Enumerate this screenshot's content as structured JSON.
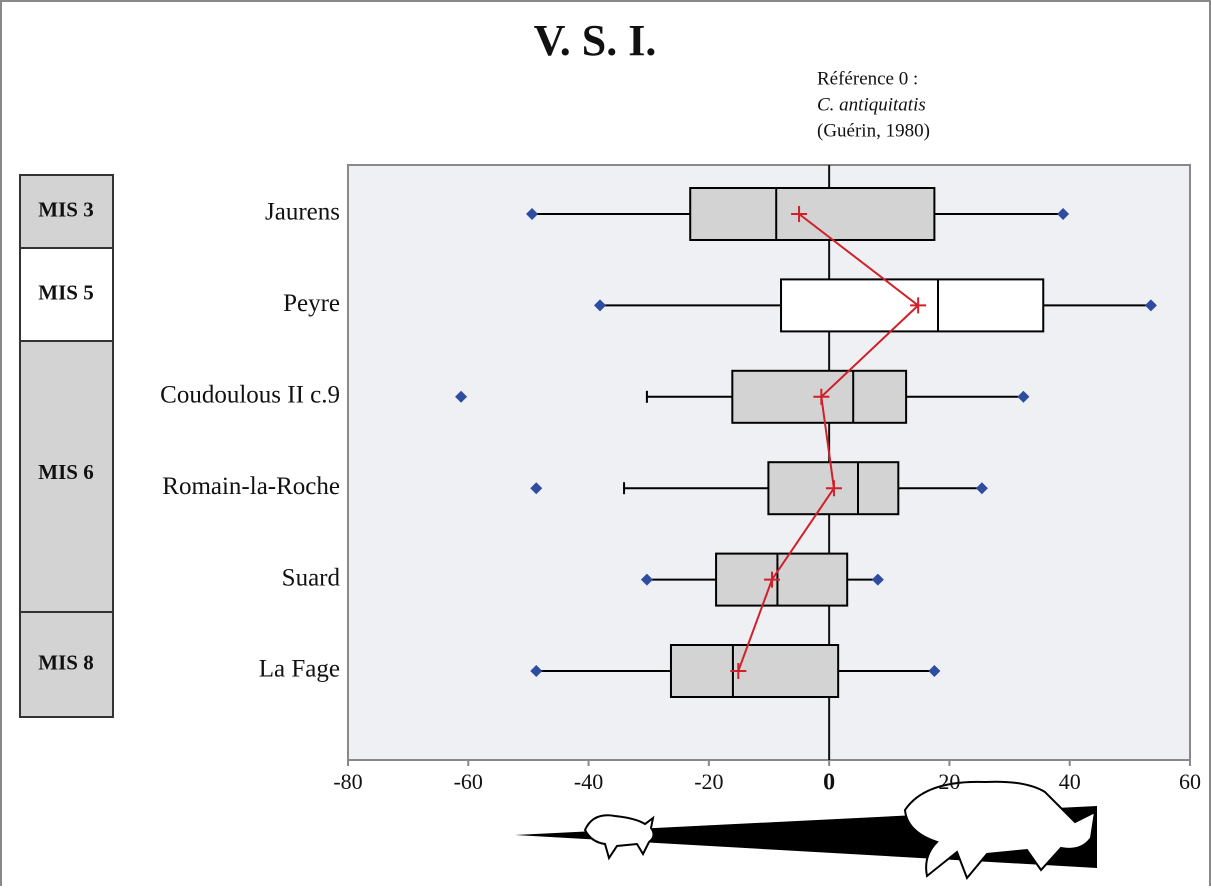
{
  "chart_data": {
    "type": "box",
    "title": "V. S. I.",
    "annotation": [
      "Référence 0 :",
      "C. antiquitatis",
      "(Guérin, 1980)"
    ],
    "categories": [
      "Jaurens",
      "Peyre",
      "Coudoulous II c.9",
      "Romain-la-Roche",
      "Suard",
      "La Fage"
    ],
    "boxes": [
      {
        "min": -49.4,
        "whisker_low": null,
        "q1": -23.1,
        "median": -8.8,
        "q3": 17.5,
        "whisker_high": null,
        "max": 38.9,
        "mean": -5.0,
        "fill": "#d3d3d3"
      },
      {
        "min": -38.1,
        "whisker_low": null,
        "q1": -8.0,
        "median": 18.1,
        "q3": 35.6,
        "whisker_high": null,
        "max": 53.5,
        "mean": 14.8,
        "fill": "#ffffff"
      },
      {
        "min": -61.2,
        "whisker_low": -30.3,
        "q1": -16.1,
        "median": 4.0,
        "q3": 12.8,
        "whisker_high": null,
        "max": 32.3,
        "mean": -1.3,
        "fill": "#d3d3d3"
      },
      {
        "min": -48.7,
        "whisker_low": -34.1,
        "q1": -10.1,
        "median": 4.8,
        "q3": 11.5,
        "whisker_high": null,
        "max": 25.4,
        "mean": 0.8,
        "fill": "#d3d3d3"
      },
      {
        "min": -30.3,
        "whisker_low": null,
        "q1": -18.8,
        "median": -8.6,
        "q3": 3.0,
        "whisker_high": null,
        "max": 8.1,
        "mean": -9.5,
        "fill": "#d3d3d3"
      },
      {
        "min": -48.7,
        "whisker_low": null,
        "q1": -26.3,
        "median": -16.0,
        "q3": 1.5,
        "whisker_high": null,
        "max": 17.5,
        "mean": -15.1,
        "fill": "#d3d3d3"
      }
    ],
    "outlier_color": "#2e4da0",
    "mean_color": "#d0202a",
    "xlim": [
      -80,
      60
    ],
    "xticks": [
      -80,
      -60,
      -40,
      -20,
      0,
      20,
      40,
      60
    ],
    "stages": [
      {
        "label": "MIS 3",
        "color": "#d3d3d3"
      },
      {
        "label": "MIS 5",
        "color": "#ffffff"
      },
      {
        "label": "MIS 6",
        "color": "#d3d3d3"
      },
      {
        "label": "MIS 8",
        "color": "#d3d3d3"
      }
    ]
  }
}
